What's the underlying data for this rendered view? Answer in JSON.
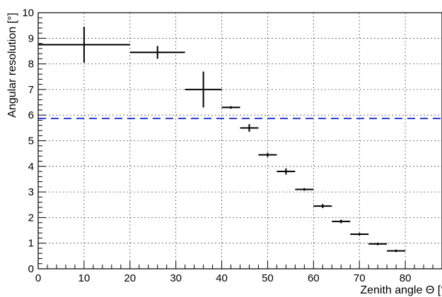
{
  "chart_data": {
    "type": "scatter",
    "title": "",
    "xlabel": "Zenith angle Θ [°]",
    "ylabel": "Angular resolution [°]",
    "xlim": [
      0,
      88
    ],
    "ylim": [
      0,
      10
    ],
    "x_ticks": [
      "0",
      "10",
      "20",
      "30",
      "40",
      "50",
      "60",
      "70",
      "80"
    ],
    "y_ticks": [
      "0",
      "1",
      "2",
      "3",
      "4",
      "5",
      "6",
      "7",
      "8",
      "9",
      "10"
    ],
    "grid": true,
    "series": [
      {
        "points": [
          {
            "x": 10,
            "x_low": 0,
            "x_high": 20,
            "y": 8.75,
            "y_err": 0.7
          },
          {
            "x": 26,
            "x_low": 20,
            "x_high": 32,
            "y": 8.45,
            "y_err": 0.25
          },
          {
            "x": 36,
            "x_low": 32,
            "x_high": 40,
            "y": 7.0,
            "y_err": 0.7
          },
          {
            "x": 42,
            "x_low": 40,
            "x_high": 44,
            "y": 6.3,
            "y_err": 0.05
          },
          {
            "x": 46,
            "x_low": 44,
            "x_high": 48,
            "y": 5.5,
            "y_err": 0.15
          },
          {
            "x": 50,
            "x_low": 48,
            "x_high": 52,
            "y": 4.45,
            "y_err": 0.08
          },
          {
            "x": 54,
            "x_low": 52,
            "x_high": 56,
            "y": 3.8,
            "y_err": 0.12
          },
          {
            "x": 58,
            "x_low": 56,
            "x_high": 60,
            "y": 3.1,
            "y_err": 0.05
          },
          {
            "x": 62,
            "x_low": 60,
            "x_high": 64,
            "y": 2.45,
            "y_err": 0.08
          },
          {
            "x": 66,
            "x_low": 64,
            "x_high": 68,
            "y": 1.85,
            "y_err": 0.07
          },
          {
            "x": 70,
            "x_low": 68,
            "x_high": 72,
            "y": 1.35,
            "y_err": 0.05
          },
          {
            "x": 74,
            "x_low": 72,
            "x_high": 76,
            "y": 0.97,
            "y_err": 0.05
          },
          {
            "x": 78,
            "x_low": 76,
            "x_high": 80,
            "y": 0.7,
            "y_err": 0.05
          }
        ]
      }
    ],
    "reference_line": {
      "y": 5.87,
      "color": "#2a3bd6",
      "style": "dashed"
    }
  }
}
